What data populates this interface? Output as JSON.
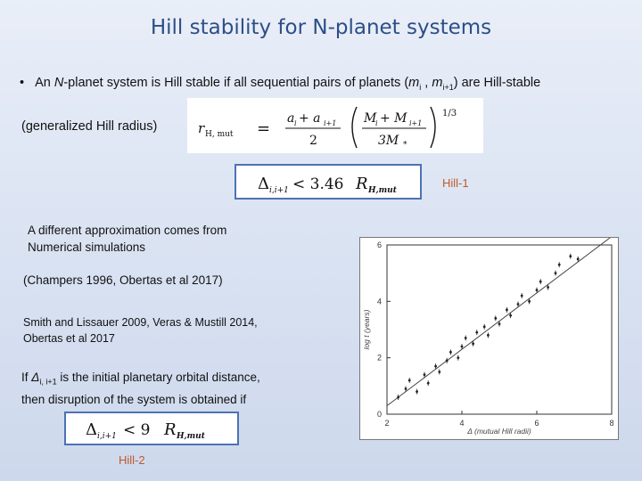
{
  "slide": {
    "title": "Hill stability for N-planet systems",
    "bullet": {
      "marker": "•",
      "text_before_N": "An ",
      "N": "N",
      "text_mid": "-planet system is Hill stable if all sequential pairs of planets (",
      "m_i": "m",
      "sub_i": "i",
      "comma": " , ",
      "m_i1": "m",
      "sub_i1": "i+1",
      "text_end": ") are Hill-stable"
    },
    "generalized_label": "(generalized Hill radius)",
    "equation_hill_radius": {
      "lhs": "r",
      "lhs_sub": "H, mut",
      "eq": "=",
      "num": "a",
      "num_sub1": "i",
      "num_plus": " + a",
      "num_sub2": "i+1",
      "den": "2",
      "inner_num": "M",
      "inner_num_sub1": "i",
      "inner_plus": " + M",
      "inner_num_sub2": "i+1",
      "inner_den": "3M",
      "inner_den_sub": "*",
      "exponent": "1/3"
    },
    "hill1": {
      "delta": "Δ",
      "sub": "i,i+1",
      "rel": " < 3.46 ",
      "R": "R",
      "R_sub": "H,mut",
      "label": "Hill-1"
    },
    "text_approx_1": "A different approximation comes from",
    "text_approx_2": "Numerical simulations",
    "citation_1": "(Champers 1996, Obertas et al 2017)",
    "citation_2_line1": "Smith and Lissauer 2009, Veras & Mustill 2014,",
    "citation_2_line2": "Obertas et al 2017",
    "disruption": {
      "if": "If ",
      "delta": "Δ",
      "sub": "i, i+1",
      "rest1": " is the initial planetary orbital distance,",
      "line2": "then disruption of the system is obtained if"
    },
    "hill2": {
      "delta": "Δ",
      "sub": "i,i+1",
      "rel": " < 9 ",
      "R": "R",
      "R_sub": "H,mut",
      "label": "Hill-2"
    }
  },
  "chart_data": {
    "type": "scatter",
    "title": "",
    "xlabel": "Δ (mutual Hill radii)",
    "ylabel": "log t (years)",
    "xlim": [
      2,
      8
    ],
    "ylim": [
      0,
      6
    ],
    "x_ticks": [
      "2",
      "4",
      "6",
      "8"
    ],
    "y_ticks": [
      "0",
      "2",
      "4",
      "6"
    ],
    "points": [
      {
        "x": 2.3,
        "y": 0.6
      },
      {
        "x": 2.5,
        "y": 0.9
      },
      {
        "x": 2.6,
        "y": 1.2
      },
      {
        "x": 2.8,
        "y": 0.8
      },
      {
        "x": 3.0,
        "y": 1.4
      },
      {
        "x": 3.1,
        "y": 1.1
      },
      {
        "x": 3.3,
        "y": 1.7
      },
      {
        "x": 3.4,
        "y": 1.5
      },
      {
        "x": 3.6,
        "y": 1.9
      },
      {
        "x": 3.7,
        "y": 2.2
      },
      {
        "x": 3.9,
        "y": 2.0
      },
      {
        "x": 4.0,
        "y": 2.4
      },
      {
        "x": 4.1,
        "y": 2.7
      },
      {
        "x": 4.3,
        "y": 2.5
      },
      {
        "x": 4.4,
        "y": 2.9
      },
      {
        "x": 4.6,
        "y": 3.1
      },
      {
        "x": 4.7,
        "y": 2.8
      },
      {
        "x": 4.9,
        "y": 3.4
      },
      {
        "x": 5.0,
        "y": 3.2
      },
      {
        "x": 5.2,
        "y": 3.7
      },
      {
        "x": 5.3,
        "y": 3.5
      },
      {
        "x": 5.5,
        "y": 3.9
      },
      {
        "x": 5.6,
        "y": 4.2
      },
      {
        "x": 5.8,
        "y": 4.0
      },
      {
        "x": 6.0,
        "y": 4.4
      },
      {
        "x": 6.1,
        "y": 4.7
      },
      {
        "x": 6.3,
        "y": 4.5
      },
      {
        "x": 6.5,
        "y": 5.0
      },
      {
        "x": 6.6,
        "y": 5.3
      },
      {
        "x": 6.9,
        "y": 5.6
      },
      {
        "x": 7.1,
        "y": 5.5
      }
    ],
    "fit_line": {
      "x": [
        2,
        8
      ],
      "y": [
        0.3,
        6.3
      ]
    },
    "grid": false
  }
}
